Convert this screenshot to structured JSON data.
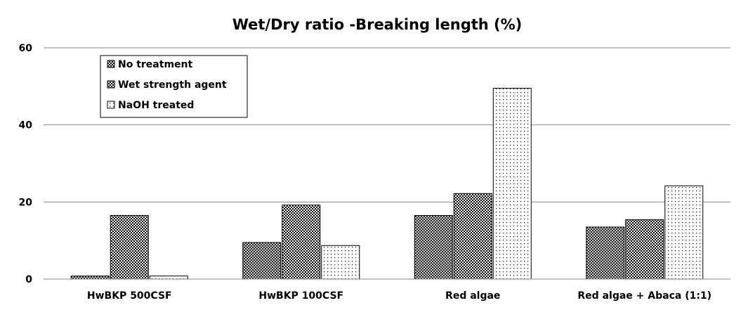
{
  "chart_data": {
    "type": "bar",
    "title": "Wet/Dry ratio -Breaking length (%)",
    "xlabel": "",
    "ylabel": "",
    "ylim": [
      0,
      60
    ],
    "yticks": [
      0,
      20,
      40,
      60
    ],
    "grid": true,
    "legend_position": "top-left",
    "categories": [
      "HwBKP 500CSF",
      "HwBKP 100CSF",
      "Red algae",
      "Red algae + Abaca (1:1)"
    ],
    "series": [
      {
        "name": "No treatment",
        "values": [
          0.8,
          9.5,
          16.5,
          13.5
        ],
        "pattern": "crosshatch"
      },
      {
        "name": "Wet strength agent",
        "values": [
          16.5,
          19.2,
          22.2,
          15.4
        ],
        "pattern": "dense-dots"
      },
      {
        "name": "NaOH treated",
        "values": [
          0.8,
          8.7,
          49.5,
          24.2
        ],
        "pattern": "sparse-dots"
      }
    ]
  }
}
